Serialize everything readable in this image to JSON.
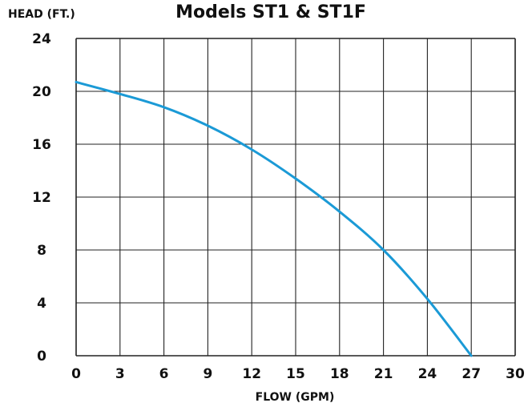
{
  "chart_data": {
    "type": "line",
    "title": "Models ST1 & ST1F",
    "xlabel": "FLOW (GPM)",
    "ylabel": "HEAD (FT.)",
    "xlim": [
      0,
      30
    ],
    "ylim": [
      0,
      24
    ],
    "xticks": [
      0,
      3,
      6,
      9,
      12,
      15,
      18,
      21,
      24,
      27,
      30
    ],
    "yticks": [
      0,
      4,
      8,
      12,
      16,
      20,
      24
    ],
    "grid": true,
    "series": [
      {
        "color": "#1b9ad6",
        "x": [
          0,
          3,
          6,
          9,
          12,
          15,
          18,
          21,
          24,
          27
        ],
        "y": [
          20.7,
          19.8,
          18.8,
          17.4,
          15.6,
          13.4,
          10.9,
          8.0,
          4.3,
          0
        ]
      }
    ]
  }
}
